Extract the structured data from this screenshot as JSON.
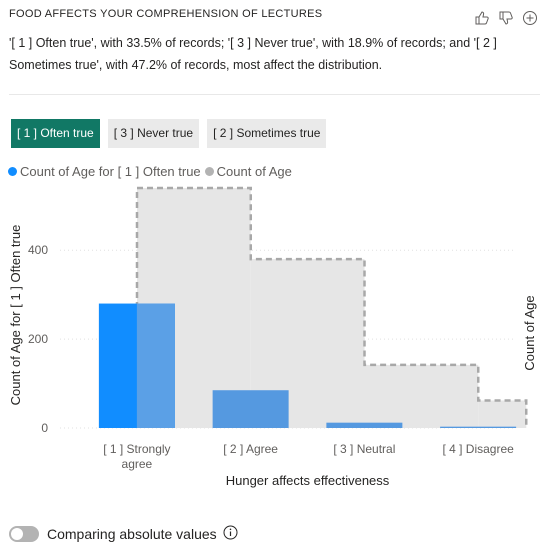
{
  "header": {
    "title": "FOOD AFFECTS YOUR COMPREHENSION OF LECTURES",
    "icons": [
      "thumbs-up-icon",
      "thumbs-down-icon",
      "add-icon"
    ]
  },
  "summary": "'[ 1 ] Often true', with 33.5% of records; '[ 3 ] Never true', with 18.9% of records; and '[ 2 ] Sometimes true', with 47.2% of records, most affect the distribution.",
  "filters": [
    {
      "label": "[ 1 ] Often true",
      "selected": true
    },
    {
      "label": "[ 3 ] Never true",
      "selected": false
    },
    {
      "label": "[ 2 ] Sometimes true",
      "selected": false
    }
  ],
  "legend": {
    "series1": "Count of Age  for [ 1 ] Often true",
    "series2": "Count of Age",
    "color1": "#118DFF",
    "color2": "#B3B3B3"
  },
  "chart_data": {
    "type": "bar",
    "categories": [
      "[ 1 ] Strongly agree",
      "[ 2 ] Agree",
      "[ 3 ] Neutral",
      "[ 4 ] Disagree"
    ],
    "category_lines": [
      [
        "[ 1 ] Strongly",
        "agree"
      ],
      [
        "[ 2 ] Agree"
      ],
      [
        "[ 3 ] Neutral"
      ],
      [
        "[ 4 ] Disagree"
      ]
    ],
    "series": [
      {
        "name": "Count of Age  for [ 1 ] Often true",
        "values": [
          280,
          85,
          12,
          3
        ],
        "color": "#118DFF",
        "axis": "left"
      },
      {
        "name": "Count of Age",
        "values": [
          540,
          380,
          142,
          62
        ],
        "color": "#B3B3B3",
        "axis": "right",
        "style": "dashed step area"
      }
    ],
    "xlabel": "Hunger affects effectiveness",
    "ylabel": "Count of Age for [ 1 ] Often true",
    "y2label": "Count of Age",
    "ylim": [
      0,
      540
    ],
    "yticks": [
      0,
      200,
      400
    ],
    "grid": true
  },
  "toggle": {
    "label": "Comparing absolute values",
    "on": false
  }
}
